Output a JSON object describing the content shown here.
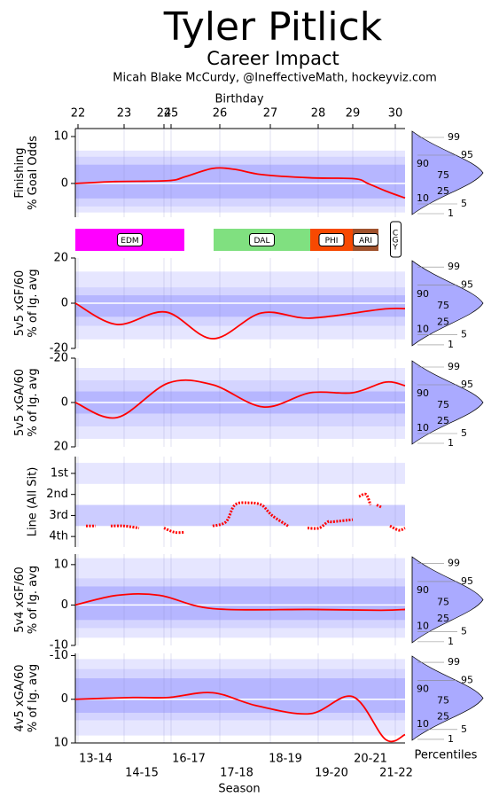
{
  "chart_data": {
    "type": "line",
    "title": "Tyler Pitlick",
    "subtitle": "Career Impact",
    "credit": "Micah Blake McCurdy, @IneffectiveMath, hockeyviz.com",
    "xlim": [
      0,
      372
    ],
    "top_axis_label": "Birthday",
    "top_ticks": [
      {
        "value": 3,
        "label": "22"
      },
      {
        "value": 55,
        "label": "23"
      },
      {
        "value": 100,
        "label": "24"
      },
      {
        "value": 108,
        "label": "25"
      },
      {
        "value": 163,
        "label": "26"
      },
      {
        "value": 220,
        "label": "27"
      },
      {
        "value": 274,
        "label": "28"
      },
      {
        "value": 313,
        "label": "29"
      },
      {
        "value": 361,
        "label": "30"
      }
    ],
    "xlabel": "Season",
    "xticks": [
      {
        "value": 23,
        "label": "13-14"
      },
      {
        "value": 75,
        "label": "14-15"
      },
      {
        "value": 128,
        "label": "16-17"
      },
      {
        "value": 182,
        "label": "17-18"
      },
      {
        "value": 237,
        "label": "18-19"
      },
      {
        "value": 289,
        "label": "19-20"
      },
      {
        "value": 333,
        "label": "20-21"
      },
      {
        "value": 362,
        "label": "21-22"
      }
    ],
    "percentile_title": "Percentiles",
    "percentile_labels": [
      99,
      95,
      90,
      75,
      25,
      10,
      5,
      1
    ],
    "teams": [
      {
        "name": "EDM",
        "start": 0,
        "end": 123,
        "color": "#ff00ff"
      },
      {
        "name": "DAL",
        "start": 156,
        "end": 265,
        "color": "#80e080"
      },
      {
        "name": "PHI",
        "start": 265,
        "end": 313,
        "color": "#f74902"
      },
      {
        "name": "ARI",
        "start": 313,
        "end": 342,
        "color": "#a0522d"
      },
      {
        "name": "CGY",
        "start": 356,
        "end": 367
      }
    ],
    "panels": [
      {
        "ylabel": [
          "Finishing",
          "% Goal Odds"
        ],
        "ylim": [
          -7.2,
          11.7
        ],
        "yticks": [
          0,
          10
        ],
        "distribution": true,
        "bands": [
          [
            -6.2,
            7
          ],
          [
            -4.9,
            5.7
          ],
          [
            -3.2,
            4
          ]
        ],
        "x": [
          0,
          45,
          105,
          125,
          155,
          180,
          210,
          265,
          315,
          330,
          350,
          372
        ],
        "values": [
          0,
          0.4,
          0.6,
          1.5,
          3.2,
          3,
          1.9,
          1.2,
          1.0,
          0,
          -1.6,
          -3.1
        ]
      },
      {
        "ylabel": [
          "5v5 xGF/60",
          "% of lg. avg"
        ],
        "ylim": [
          -20,
          20
        ],
        "yticks": [
          -20,
          0,
          20
        ],
        "distribution": true,
        "bands": [
          [
            -16,
            14
          ],
          [
            -10,
            7
          ],
          [
            -6,
            3.5
          ]
        ],
        "x": [
          0,
          47,
          102,
          155,
          210,
          265,
          345,
          372
        ],
        "values": [
          0,
          -9.4,
          -3.9,
          -15.7,
          -4.3,
          -6.6,
          -2.7,
          -2.4
        ]
      },
      {
        "ylabel": [
          "5v5 xGA/60",
          "% of lg. avg"
        ],
        "ylim": [
          20,
          -20
        ],
        "yticks": [
          -20,
          0,
          20
        ],
        "distribution": true,
        "bands": [
          [
            -15.6,
            16.4
          ],
          [
            -10,
            10.8
          ],
          [
            -5,
            5
          ]
        ],
        "x": [
          0,
          47,
          105,
          155,
          212,
          265,
          313,
          350,
          372
        ],
        "values": [
          0,
          6.8,
          -8.8,
          -8,
          2,
          -4.4,
          -4.4,
          -9.2,
          -7.6
        ]
      },
      {
        "ylabel": [
          "Line (All Sit)"
        ],
        "ylim": [
          4.5,
          0.2
        ],
        "yticks": [
          {
            "value": 1,
            "label": "1st"
          },
          {
            "value": 2,
            "label": "2nd"
          },
          {
            "value": 3,
            "label": "3rd"
          },
          {
            "value": 4,
            "label": "4th"
          }
        ],
        "dotted": true,
        "bands": [
          [
            0.5,
            1.5
          ],
          [
            2.5,
            3.5
          ]
        ],
        "x": [
          12,
          23,
          30,
          40,
          55,
          72,
          85,
          100,
          112,
          123,
          140,
          155,
          170,
          180,
          195,
          210,
          222,
          240,
          250,
          262,
          275,
          285,
          290,
          313,
          318,
          320,
          328,
          333,
          338,
          340,
          345,
          350,
          355,
          365,
          372
        ],
        "values": [
          3.5,
          3.5,
          null,
          3.5,
          3.5,
          3.6,
          null,
          3.6,
          3.8,
          3.8,
          null,
          3.5,
          3.3,
          2.5,
          2.4,
          2.5,
          3.0,
          3.5,
          null,
          3.6,
          3.6,
          3.3,
          3.3,
          3.2,
          null,
          2.1,
          2.0,
          2.5,
          null,
          2.5,
          2.6,
          null,
          3.5,
          3.7,
          3.6
        ]
      },
      {
        "ylabel": [
          "5v4 xGF/60",
          "% of lg. avg"
        ],
        "ylim": [
          -10,
          12.6
        ],
        "yticks": [
          -10,
          0,
          10
        ],
        "distribution": true,
        "bands": [
          [
            -8.1,
            11.6
          ],
          [
            -5.7,
            6.6
          ],
          [
            -3.7,
            4.6
          ]
        ],
        "x": [
          0,
          47,
          95,
          155,
          265,
          345,
          372
        ],
        "values": [
          0,
          2.4,
          2.4,
          -0.9,
          -1.1,
          -1.3,
          -1.1
        ]
      },
      {
        "ylabel": [
          "4v5 xGA/60",
          "% of lg. avg"
        ],
        "ylim": [
          10,
          -10.5
        ],
        "yticks": [
          -10,
          0,
          10
        ],
        "distribution": true,
        "bands": [
          [
            -9.2,
            8.3
          ],
          [
            -6.9,
            4.8
          ],
          [
            -4.8,
            3.1
          ]
        ],
        "x": [
          0,
          65,
          105,
          155,
          205,
          265,
          313,
          350,
          372
        ],
        "values": [
          0,
          -0.4,
          -0.4,
          -1.5,
          1.5,
          3.3,
          -0.6,
          9.2,
          8.1
        ]
      }
    ]
  }
}
